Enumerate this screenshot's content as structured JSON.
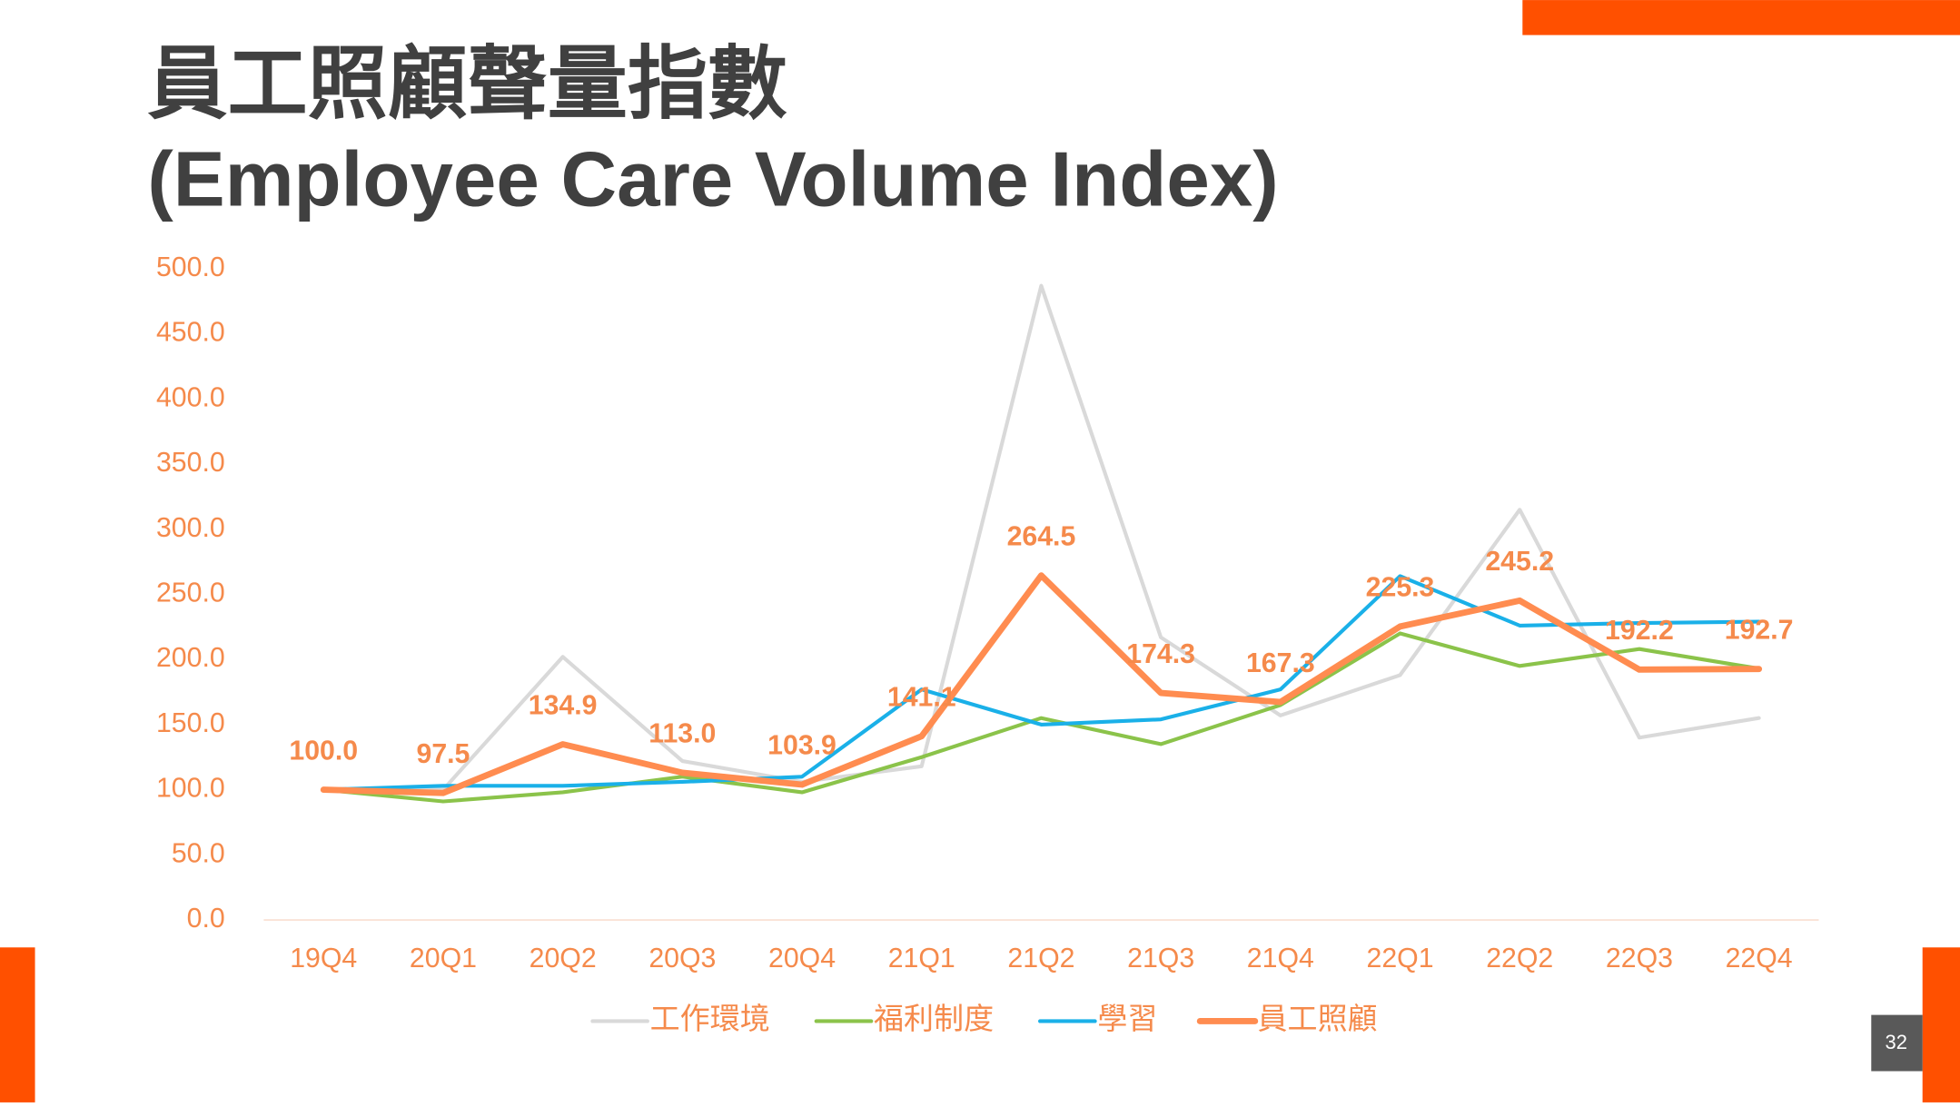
{
  "chart_data": {
    "type": "line",
    "title": "員工照顧聲量指數",
    "subtitle": "(Employee Care Volume Index)",
    "page_number": "32",
    "categories": [
      "19Q4",
      "20Q1",
      "20Q2",
      "20Q3",
      "20Q4",
      "21Q1",
      "21Q2",
      "21Q3",
      "21Q4",
      "22Q1",
      "22Q2",
      "22Q3",
      "22Q4"
    ],
    "ylim": [
      0,
      500
    ],
    "yticks": [
      {
        "value": 0,
        "label": "0.0"
      },
      {
        "value": 50,
        "label": "50.0"
      },
      {
        "value": 100,
        "label": "100.0"
      },
      {
        "value": 150,
        "label": "150.0"
      },
      {
        "value": 200,
        "label": "200.0"
      },
      {
        "value": 250,
        "label": "250.0"
      },
      {
        "value": 300,
        "label": "300.0"
      },
      {
        "value": 350,
        "label": "350.0"
      },
      {
        "value": 400,
        "label": "400.0"
      },
      {
        "value": 450,
        "label": "450.0"
      },
      {
        "value": 500,
        "label": "500.0"
      }
    ],
    "legend": "bottom",
    "series": [
      {
        "name": "工作環境",
        "color": "#d9d9d9",
        "width": 3,
        "values": [
          100,
          100,
          202,
          122,
          106,
          118,
          487,
          217,
          157,
          188,
          315,
          140,
          155
        ]
      },
      {
        "name": "福利制度",
        "color": "#8bc34a",
        "width": 3,
        "values": [
          100,
          91,
          98,
          110,
          98,
          125,
          155,
          135,
          165,
          220,
          195,
          208,
          193
        ]
      },
      {
        "name": "學習",
        "color": "#1ab0e8",
        "width": 3,
        "values": [
          100,
          103,
          103,
          106,
          110,
          177,
          150,
          154,
          177,
          264,
          226,
          228,
          229
        ]
      },
      {
        "name": "員工照顧",
        "color": "#ff8c50",
        "width": 5,
        "values": [
          100,
          97.5,
          134.9,
          113,
          103.9,
          141.1,
          264.5,
          174.3,
          167.3,
          225.3,
          245.2,
          192.2,
          192.7
        ],
        "value_labels": [
          "100.0",
          "97.5",
          "134.9",
          "113.0",
          "103.9",
          "141.1",
          "264.5",
          "174.3",
          "167.3",
          "225.3",
          "245.2",
          "192.2",
          "192.7"
        ]
      }
    ]
  }
}
